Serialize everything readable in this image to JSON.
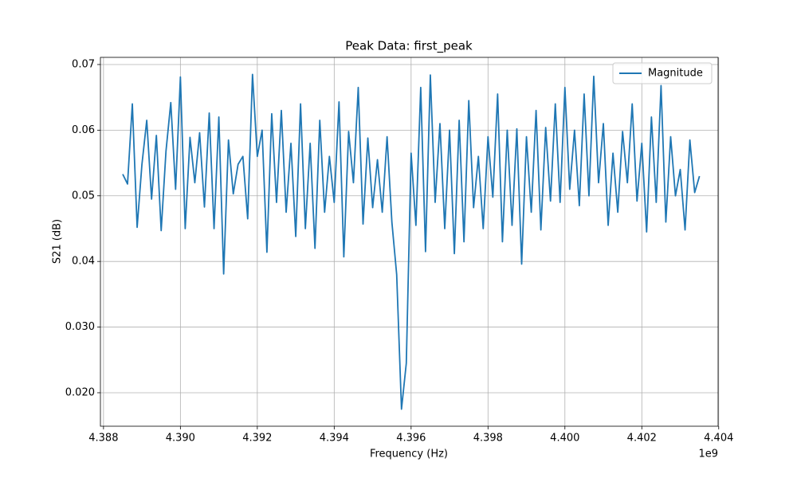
{
  "chart_data": {
    "type": "line",
    "title": "Peak Data: first_peak",
    "x_label": "Frequency (Hz)",
    "y_label": "S21 (dB)",
    "x_offset_label": "1e9",
    "x": [
      4388500000,
      4388625000,
      4388750000,
      4388875000,
      4389000000,
      4389125000,
      4389250000,
      4389375000,
      4389500000,
      4389625000,
      4389750000,
      4389875000,
      4390000000,
      4390125000,
      4390250000,
      4390375000,
      4390500000,
      4390625000,
      4390750000,
      4390875000,
      4391000000,
      4391125000,
      4391250000,
      4391375000,
      4391500000,
      4391625000,
      4391750000,
      4391875000,
      4392000000,
      4392125000,
      4392250000,
      4392375000,
      4392500000,
      4392625000,
      4392750000,
      4392875000,
      4393000000,
      4393125000,
      4393250000,
      4393375000,
      4393500000,
      4393625000,
      4393750000,
      4393875000,
      4394000000,
      4394125000,
      4394250000,
      4394375000,
      4394500000,
      4394625000,
      4394750000,
      4394875000,
      4395000000,
      4395125000,
      4395250000,
      4395375000,
      4395500000,
      4395625000,
      4395750000,
      4395875000,
      4396000000,
      4396125000,
      4396250000,
      4396375000,
      4396500000,
      4396625000,
      4396750000,
      4396875000,
      4397000000,
      4397125000,
      4397250000,
      4397375000,
      4397500000,
      4397625000,
      4397750000,
      4397875000,
      4398000000,
      4398125000,
      4398250000,
      4398375000,
      4398500000,
      4398625000,
      4398750000,
      4398875000,
      4399000000,
      4399125000,
      4399250000,
      4399375000,
      4399500000,
      4399625000,
      4399750000,
      4399875000,
      4400000000,
      4400125000,
      4400250000,
      4400375000,
      4400500000,
      4400625000,
      4400750000,
      4400875000,
      4401000000,
      4401125000,
      4401250000,
      4401375000,
      4401500000,
      4401625000,
      4401750000,
      4401875000,
      4402000000,
      4402125000,
      4402250000,
      4402375000,
      4402500000,
      4402625000,
      4402750000,
      4402875000,
      4403000000,
      4403125000,
      4403250000,
      4403375000,
      4403500000
    ],
    "series": [
      {
        "name": "Magnitude",
        "color": "#1f77b4",
        "values": [
          0.0533,
          0.0518,
          0.064,
          0.0452,
          0.0548,
          0.0615,
          0.0495,
          0.0592,
          0.0447,
          0.0568,
          0.0642,
          0.051,
          0.0681,
          0.045,
          0.0589,
          0.052,
          0.0596,
          0.0483,
          0.0626,
          0.045,
          0.062,
          0.0381,
          0.0585,
          0.0503,
          0.0548,
          0.056,
          0.0465,
          0.0685,
          0.056,
          0.06,
          0.0414,
          0.0625,
          0.049,
          0.063,
          0.0475,
          0.058,
          0.0438,
          0.064,
          0.045,
          0.058,
          0.042,
          0.0615,
          0.0475,
          0.056,
          0.049,
          0.0643,
          0.0407,
          0.0598,
          0.052,
          0.0665,
          0.0457,
          0.0588,
          0.0482,
          0.0555,
          0.0475,
          0.059,
          0.046,
          0.038,
          0.0175,
          0.0245,
          0.0565,
          0.0455,
          0.0665,
          0.0415,
          0.0684,
          0.049,
          0.061,
          0.045,
          0.06,
          0.0412,
          0.0615,
          0.043,
          0.0645,
          0.0482,
          0.056,
          0.045,
          0.059,
          0.0498,
          0.0655,
          0.043,
          0.06,
          0.0455,
          0.0602,
          0.0396,
          0.059,
          0.0475,
          0.063,
          0.0448,
          0.0604,
          0.0492,
          0.064,
          0.049,
          0.0665,
          0.051,
          0.06,
          0.0485,
          0.0655,
          0.05,
          0.0682,
          0.052,
          0.061,
          0.0455,
          0.0565,
          0.0475,
          0.0598,
          0.052,
          0.064,
          0.0492,
          0.058,
          0.0445,
          0.062,
          0.049,
          0.0668,
          0.046,
          0.059,
          0.05,
          0.054,
          0.0448,
          0.0585,
          0.0505,
          0.053
        ]
      }
    ],
    "xlim": [
      4387920000,
      4403984000
    ],
    "ylim": [
      0.0149,
      0.07109
    ],
    "xticks": [
      {
        "value": 4388000000,
        "label": "4.388"
      },
      {
        "value": 4390000000,
        "label": "4.390"
      },
      {
        "value": 4392000000,
        "label": "4.392"
      },
      {
        "value": 4394000000,
        "label": "4.394"
      },
      {
        "value": 4396000000,
        "label": "4.396"
      },
      {
        "value": 4398000000,
        "label": "4.398"
      },
      {
        "value": 4400000000,
        "label": "4.400"
      },
      {
        "value": 4402000000,
        "label": "4.402"
      },
      {
        "value": 4404000000,
        "label": "4.404"
      }
    ],
    "yticks": [
      {
        "value": 0.02,
        "label": "0.020"
      },
      {
        "value": 0.03,
        "label": "0.030"
      },
      0.04,
      0.05,
      0.06,
      0.07
    ],
    "grid": true,
    "legend": "upper right"
  }
}
